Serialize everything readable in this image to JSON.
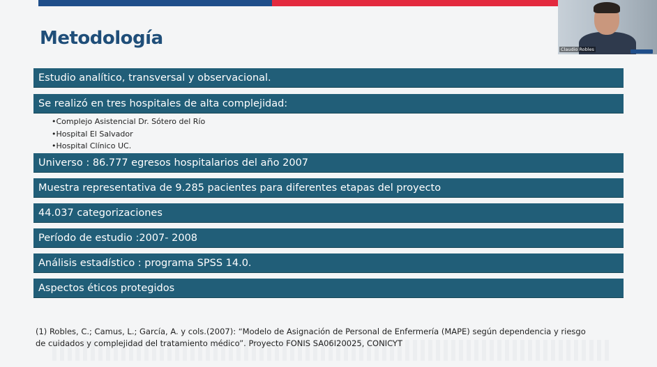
{
  "slide": {
    "title": "Metodología",
    "items": [
      "Estudio analítico, transversal y observacional.",
      "Se realizó en tres hospitales de alta complejidad:",
      "Universo : 86.777 egresos hospitalarios del año 2007",
      "Muestra representativa de 9.285 pacientes para diferentes etapas del proyecto",
      "44.037 categorizaciones",
      "Período de estudio :2007- 2008",
      "Análisis estadístico : programa SPSS 14.0.",
      "Aspectos éticos protegidos"
    ],
    "hospitals": [
      "•Complejo Asistencial Dr. Sótero del Río",
      "•Hospital El Salvador",
      "•Hospital Clínico UC."
    ],
    "reference_line1": "(1) Robles, C.; Camus, L.; García, A. y cols.(2007): “Modelo de Asignación de Personal de Enfermería (MAPE) según dependencia y riesgo",
    "reference_line2": "de cuidados  y complejidad del tratamiento médico”. Proyecto FONIS SA06I20025, CONICYT"
  },
  "video": {
    "participant_name": "Claudio Robles"
  },
  "colors": {
    "title": "#1f4e79",
    "bar": "#215e78",
    "top_blue": "#1f4e8a",
    "top_red": "#e32a3f"
  }
}
